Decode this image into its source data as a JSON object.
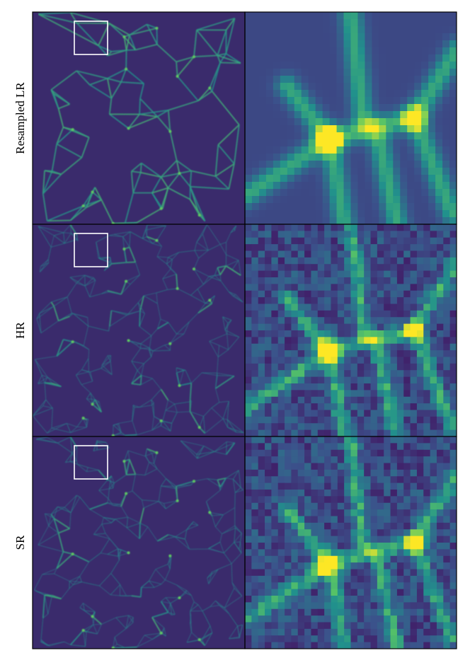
{
  "rows": [
    {
      "label": "Resampled LR"
    },
    {
      "label": "HR"
    },
    {
      "label": "SR"
    }
  ]
}
